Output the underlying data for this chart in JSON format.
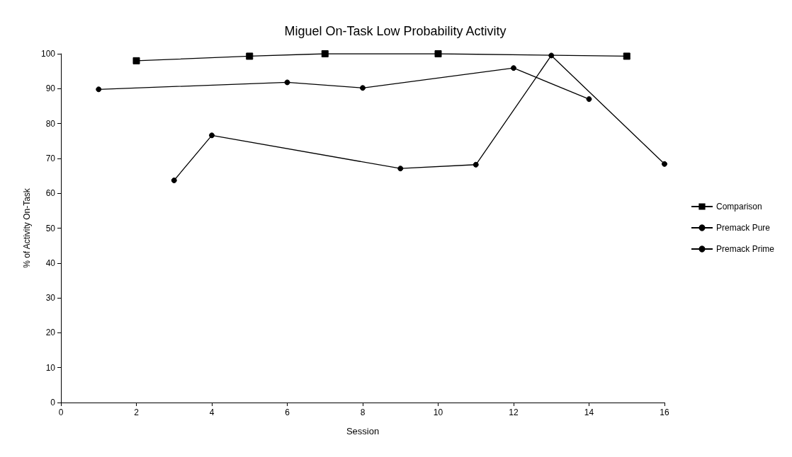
{
  "chart_data": {
    "type": "line",
    "title": "Miguel On-Task Low Probability Activity",
    "xlabel": "Session",
    "ylabel": "% of Activity On-Task",
    "xlim": [
      0,
      16
    ],
    "xticks": [
      0,
      2,
      4,
      6,
      8,
      10,
      12,
      14,
      16
    ],
    "ylim": [
      0,
      100
    ],
    "yticks": [
      0,
      10,
      20,
      30,
      40,
      50,
      60,
      70,
      80,
      90,
      100
    ],
    "grid": false,
    "legend": "right",
    "series": [
      {
        "name": "Comparison",
        "color": "#000000",
        "marker": "square",
        "x": [
          2,
          5,
          7,
          10,
          15
        ],
        "values": [
          98.0,
          99.3,
          100,
          100,
          99.3
        ]
      },
      {
        "name": "Premack Pure",
        "color": "#000000",
        "marker": "circle",
        "x": [
          3,
          4,
          9,
          11,
          13,
          16
        ],
        "values": [
          63.7,
          76.6,
          67.1,
          68.2,
          99.5,
          68.4
        ]
      },
      {
        "name": "Premack Prime",
        "color": "#000000",
        "marker": "circle",
        "x": [
          1,
          6,
          8,
          12,
          14
        ],
        "values": [
          89.8,
          91.8,
          90.2,
          95.9,
          87.0
        ]
      }
    ]
  }
}
